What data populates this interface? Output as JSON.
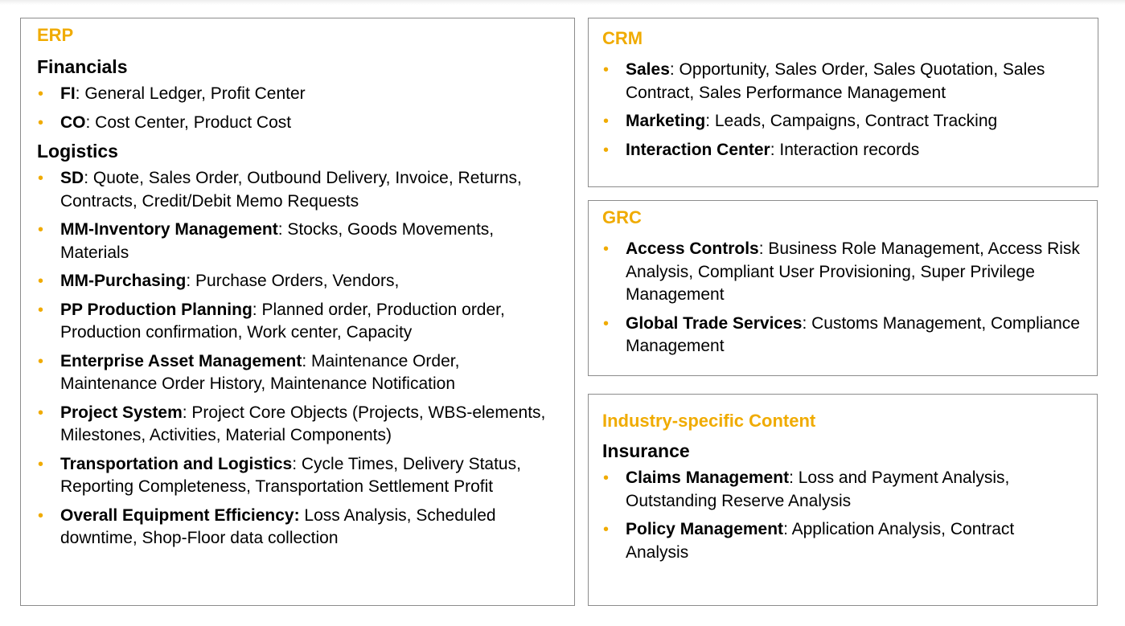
{
  "erp": {
    "title": "ERP",
    "groups": [
      {
        "heading": "Financials",
        "items": [
          {
            "label": "FI",
            "text": ": General Ledger, Profit Center"
          },
          {
            "label": "CO",
            "text": ": Cost Center, Product Cost"
          }
        ]
      },
      {
        "heading": "Logistics",
        "items": [
          {
            "label": "SD",
            "text": ": Quote, Sales Order, Outbound Delivery, Invoice, Returns, Contracts, Credit/Debit Memo Requests"
          },
          {
            "label": "MM-Inventory Management",
            "text": ": Stocks, Goods Movements, Materials"
          },
          {
            "label": "MM-Purchasing",
            "text": ": Purchase Orders, Vendors,"
          },
          {
            "label": "PP Production Planning",
            "text": ": Planned order, Production order, Production confirmation, Work center, Capacity"
          },
          {
            "label": "Enterprise Asset Management",
            "text": ": Maintenance Order, Maintenance Order History, Maintenance Notification"
          },
          {
            "label": "Project System",
            "text": ": Project Core Objects (Projects, WBS-elements, Milestones, Activities, Material Components)"
          },
          {
            "label": "Transportation and Logistics",
            "text": ": Cycle Times, Delivery Status, Reporting Completeness, Transportation Settlement Profit"
          },
          {
            "label": "Overall Equipment Efficiency:",
            "text": " Loss Analysis, Scheduled downtime, Shop-Floor data collection"
          }
        ]
      }
    ]
  },
  "crm": {
    "title": "CRM",
    "items": [
      {
        "label": "Sales",
        "text": ": Opportunity, Sales Order, Sales Quotation, Sales Contract, Sales Performance Management"
      },
      {
        "label": "Marketing",
        "text": ": Leads, Campaigns, Contract Tracking"
      },
      {
        "label": "Interaction Center",
        "text": ": Interaction records"
      }
    ]
  },
  "grc": {
    "title": "GRC",
    "items": [
      {
        "label": "Access Controls",
        "text": ": Business Role Management, Access Risk Analysis, Compliant User Provisioning, Super Privilege Management"
      },
      {
        "label": "Global Trade Services",
        "text": ": Customs Management, Compliance Management"
      }
    ]
  },
  "industry": {
    "title": "Industry-specific Content",
    "groups": [
      {
        "heading": "Insurance",
        "items": [
          {
            "label": "Claims Management",
            "text": ": Loss and Payment Analysis, Outstanding Reserve Analysis"
          },
          {
            "label": "Policy Management",
            "text": ": Application Analysis, Contract Analysis"
          }
        ]
      }
    ]
  },
  "bullet": "•",
  "colors": {
    "accent": "#f0ab00",
    "border": "#8c8c8c",
    "text": "#000000"
  }
}
